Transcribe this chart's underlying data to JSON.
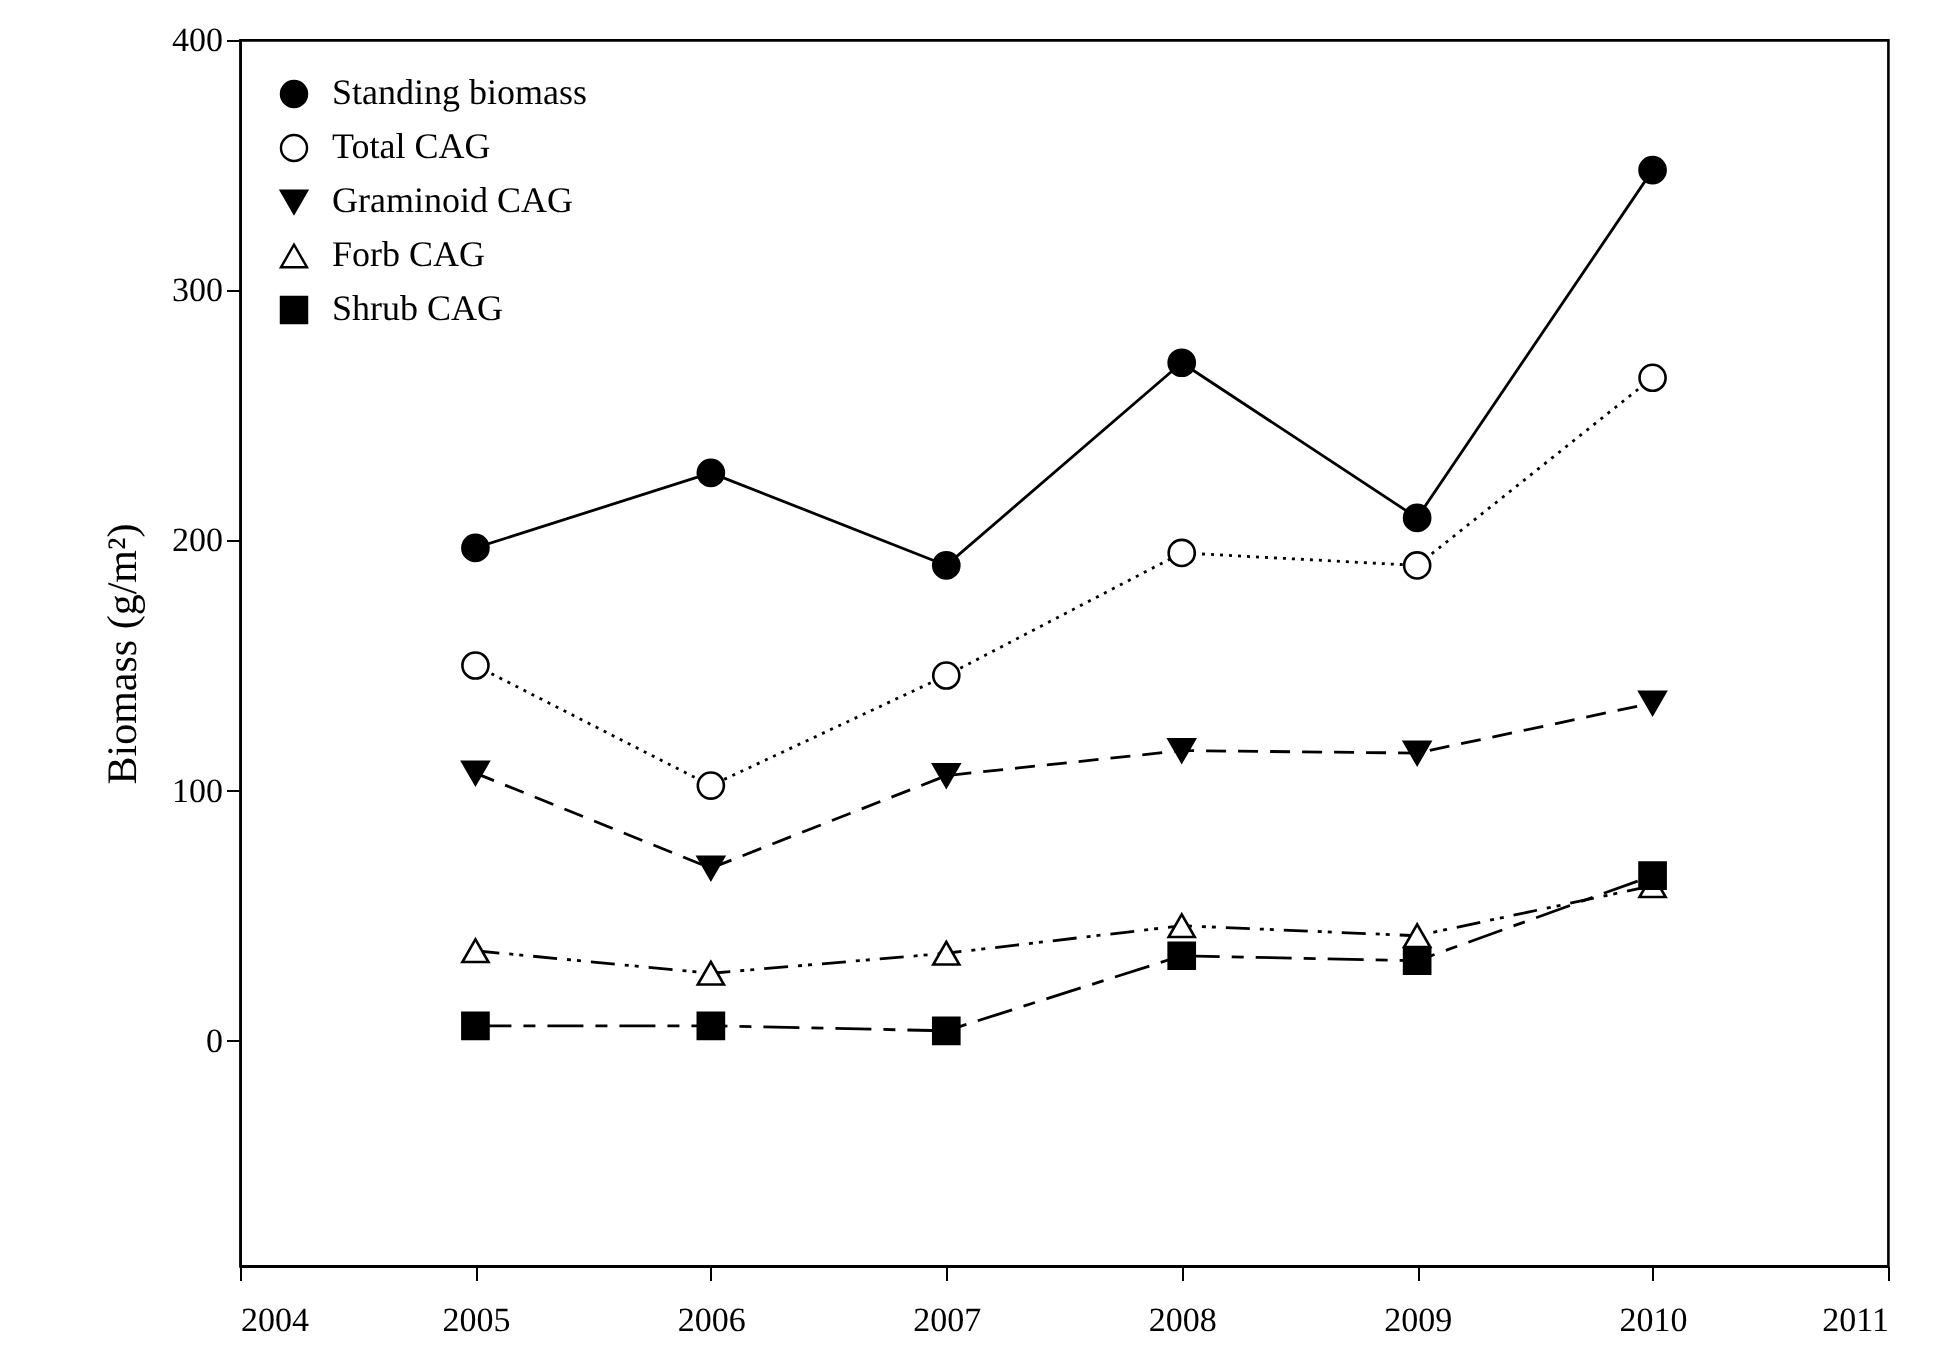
{
  "chart_data": {
    "type": "line",
    "ylabel": "Biomass (g/m²)",
    "x": [
      2005,
      2006,
      2007,
      2008,
      2009,
      2010
    ],
    "xlim": [
      2004,
      2011
    ],
    "xticks": [
      2004,
      2005,
      2006,
      2007,
      2008,
      2009,
      2010,
      2011
    ],
    "ylim": [
      -90,
      400
    ],
    "yticks": [
      0,
      100,
      200,
      300,
      400
    ],
    "grid": false,
    "legend": "top left",
    "series": [
      {
        "name": "Standing biomass",
        "color": "#000000",
        "marker": "circle",
        "line_style": "solid",
        "values": [
          197,
          227,
          190,
          271,
          209,
          348
        ]
      },
      {
        "name": "Total CAG",
        "color": "#000000",
        "marker": "circle-open",
        "line_style": "dotted",
        "values": [
          150,
          102,
          146,
          195,
          190,
          265
        ]
      },
      {
        "name": "Graminoid CAG",
        "color": "#000000",
        "marker": "triangle-down",
        "line_style": "dashed",
        "values": [
          107,
          69,
          106,
          116,
          115,
          135
        ]
      },
      {
        "name": "Forb CAG",
        "color": "#000000",
        "marker": "triangle-open",
        "line_style": "dashdot",
        "values": [
          36,
          27,
          35,
          46,
          42,
          62
        ]
      },
      {
        "name": "Shrub CAG",
        "color": "#000000",
        "marker": "square",
        "line_style": "longdash",
        "values": [
          6,
          6,
          4,
          34,
          32,
          66
        ]
      }
    ]
  }
}
